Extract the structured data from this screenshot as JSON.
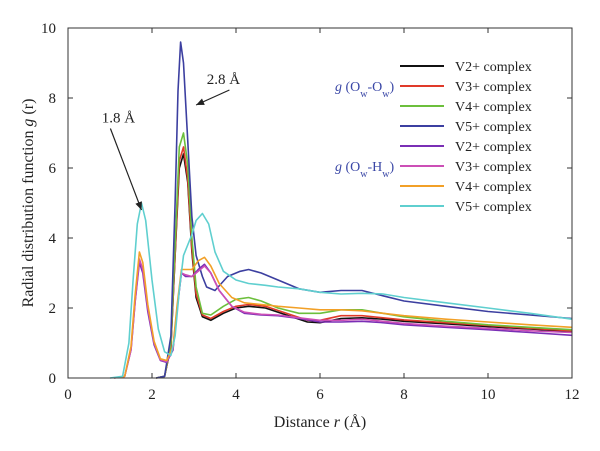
{
  "chart_data": {
    "type": "line",
    "xlabel_prefix": "Distance ",
    "xlabel_var": "r",
    "xlabel_suffix": " (Å)",
    "ylabel_prefix": "Radial distribution function ",
    "ylabel_var": "g",
    "ylabel_suffix": " (r)",
    "xlim": [
      0,
      12
    ],
    "ylim": [
      0,
      10
    ],
    "xticks": [
      0,
      2,
      4,
      6,
      8,
      10,
      12
    ],
    "yticks": [
      0,
      2,
      4,
      6,
      8,
      10
    ],
    "grid": false,
    "legend_position": "top-right",
    "group_labels": [
      {
        "g": "g",
        "open": " (O",
        "s1": "w",
        "dash": "-O",
        "s2": "w",
        "close": ")"
      },
      {
        "g": "g",
        "open": " (O",
        "s1": "w",
        "dash": "-H",
        "s2": "w",
        "close": ")"
      }
    ],
    "annotations": [
      {
        "text": "1.8 Å",
        "arrow_to": [
          1.75,
          4.8
        ],
        "text_at": [
          1.2,
          7.3
        ]
      },
      {
        "text": "2.8 Å",
        "arrow_to": [
          3.05,
          7.8
        ],
        "text_at": [
          3.7,
          8.4
        ]
      }
    ],
    "series": [
      {
        "name": "V2+ complex",
        "color": "#111111",
        "x": [
          2.1,
          2.3,
          2.45,
          2.55,
          2.65,
          2.75,
          2.85,
          2.95,
          3.05,
          3.2,
          3.4,
          3.7,
          4.0,
          4.3,
          4.7,
          5.2,
          5.7,
          6.0,
          6.5,
          7.0,
          7.5,
          8.0,
          9.0,
          10.0,
          11.0,
          12.0
        ],
        "y": [
          0,
          0.05,
          0.9,
          3.5,
          6.0,
          6.4,
          5.6,
          3.6,
          2.3,
          1.75,
          1.65,
          1.85,
          2.0,
          2.05,
          2.0,
          1.8,
          1.6,
          1.58,
          1.7,
          1.72,
          1.68,
          1.62,
          1.55,
          1.47,
          1.4,
          1.32
        ]
      },
      {
        "name": "V3+ complex",
        "color": "#e03a2a",
        "x": [
          2.1,
          2.3,
          2.45,
          2.55,
          2.65,
          2.75,
          2.85,
          2.95,
          3.05,
          3.2,
          3.4,
          3.7,
          4.0,
          4.3,
          4.7,
          5.2,
          5.7,
          6.0,
          6.5,
          7.0,
          7.5,
          8.0,
          9.0,
          10.0,
          11.0,
          12.0
        ],
        "y": [
          0,
          0.05,
          0.9,
          3.5,
          6.2,
          6.6,
          5.7,
          3.7,
          2.4,
          1.8,
          1.7,
          1.9,
          2.05,
          2.1,
          2.05,
          1.85,
          1.65,
          1.65,
          1.78,
          1.78,
          1.72,
          1.66,
          1.58,
          1.5,
          1.42,
          1.35
        ]
      },
      {
        "name": "V4+ complex",
        "color": "#6cbf3c",
        "x": [
          2.1,
          2.3,
          2.45,
          2.55,
          2.65,
          2.75,
          2.85,
          2.95,
          3.05,
          3.2,
          3.4,
          3.7,
          4.0,
          4.3,
          4.6,
          5.0,
          5.5,
          6.0,
          6.5,
          7.0,
          7.5,
          8.0,
          9.0,
          10.0,
          11.0,
          12.0
        ],
        "y": [
          0,
          0.05,
          1.0,
          3.8,
          6.6,
          7.0,
          6.1,
          4.0,
          2.6,
          1.85,
          1.8,
          2.05,
          2.25,
          2.3,
          2.2,
          2.0,
          1.85,
          1.85,
          1.95,
          1.95,
          1.85,
          1.75,
          1.62,
          1.52,
          1.45,
          1.38
        ]
      },
      {
        "name": "V5+ complex",
        "color": "#3c3fa0",
        "x": [
          2.1,
          2.3,
          2.45,
          2.55,
          2.62,
          2.68,
          2.75,
          2.85,
          2.95,
          3.05,
          3.2,
          3.3,
          3.5,
          3.8,
          4.1,
          4.3,
          4.6,
          5.0,
          5.5,
          6.0,
          6.5,
          7.0,
          7.5,
          8.0,
          9.0,
          10.0,
          11.0,
          12.0
        ],
        "y": [
          0,
          0.05,
          1.2,
          5.0,
          8.2,
          9.6,
          9.0,
          6.8,
          4.6,
          3.5,
          2.9,
          2.6,
          2.5,
          2.9,
          3.05,
          3.1,
          3.0,
          2.8,
          2.55,
          2.45,
          2.5,
          2.5,
          2.35,
          2.2,
          2.05,
          1.9,
          1.8,
          1.7
        ]
      },
      {
        "name": "V2+ complex",
        "color": "#7a2fb5",
        "x": [
          1.1,
          1.35,
          1.5,
          1.6,
          1.7,
          1.78,
          1.9,
          2.05,
          2.2,
          2.35,
          2.5,
          2.6,
          2.7,
          2.8,
          2.95,
          3.1,
          3.25,
          3.4,
          3.6,
          3.9,
          4.2,
          4.6,
          5.0,
          5.5,
          6.0,
          6.5,
          7.0,
          7.5,
          8.0,
          9.0,
          10.0,
          11.0,
          12.0
        ],
        "y": [
          0,
          0.05,
          0.8,
          2.2,
          3.3,
          3.0,
          1.9,
          0.95,
          0.5,
          0.45,
          0.8,
          2.0,
          3.0,
          2.9,
          2.9,
          3.1,
          3.25,
          3.0,
          2.5,
          2.05,
          1.85,
          1.8,
          1.78,
          1.7,
          1.6,
          1.6,
          1.62,
          1.58,
          1.52,
          1.45,
          1.38,
          1.3,
          1.22
        ]
      },
      {
        "name": "V3+ complex",
        "color": "#cc4fb6",
        "x": [
          1.1,
          1.35,
          1.5,
          1.6,
          1.7,
          1.78,
          1.9,
          2.05,
          2.2,
          2.35,
          2.5,
          2.6,
          2.7,
          2.8,
          2.95,
          3.1,
          3.25,
          3.4,
          3.6,
          3.9,
          4.2,
          4.6,
          5.0,
          5.5,
          6.0,
          6.5,
          7.0,
          7.5,
          8.0,
          9.0,
          10.0,
          11.0,
          12.0
        ],
        "y": [
          0,
          0.05,
          0.8,
          2.2,
          3.4,
          3.1,
          2.0,
          1.0,
          0.52,
          0.47,
          0.85,
          2.0,
          3.0,
          2.95,
          2.9,
          3.05,
          3.2,
          3.0,
          2.5,
          2.05,
          1.88,
          1.82,
          1.8,
          1.72,
          1.65,
          1.65,
          1.68,
          1.62,
          1.56,
          1.48,
          1.42,
          1.35,
          1.3
        ]
      },
      {
        "name": "V4+ complex",
        "color": "#f2a027",
        "x": [
          1.1,
          1.35,
          1.5,
          1.6,
          1.7,
          1.78,
          1.9,
          2.05,
          2.2,
          2.35,
          2.5,
          2.6,
          2.7,
          2.8,
          2.95,
          3.1,
          3.25,
          3.4,
          3.6,
          3.9,
          4.2,
          4.6,
          5.0,
          5.5,
          6.0,
          6.5,
          7.0,
          7.5,
          8.0,
          9.0,
          10.0,
          11.0,
          12.0
        ],
        "y": [
          0,
          0.05,
          0.9,
          2.4,
          3.6,
          3.3,
          2.1,
          1.05,
          0.55,
          0.5,
          0.9,
          2.1,
          3.1,
          3.1,
          3.1,
          3.35,
          3.45,
          3.2,
          2.7,
          2.3,
          2.15,
          2.1,
          2.05,
          2.0,
          1.95,
          1.95,
          1.92,
          1.85,
          1.78,
          1.68,
          1.6,
          1.52,
          1.45
        ]
      },
      {
        "name": "V5+ complex",
        "color": "#5fcfcf",
        "x": [
          1.0,
          1.3,
          1.45,
          1.55,
          1.65,
          1.75,
          1.85,
          2.0,
          2.15,
          2.3,
          2.45,
          2.55,
          2.65,
          2.75,
          2.85,
          2.95,
          3.05,
          3.2,
          3.35,
          3.5,
          3.7,
          4.0,
          4.3,
          4.7,
          5.0,
          5.5,
          6.0,
          6.5,
          7.0,
          7.5,
          8.0,
          9.0,
          10.0,
          11.0,
          12.0
        ],
        "y": [
          0,
          0.05,
          1.0,
          2.8,
          4.4,
          5.0,
          4.5,
          2.8,
          1.4,
          0.75,
          0.65,
          1.2,
          2.5,
          3.5,
          3.8,
          4.1,
          4.5,
          4.7,
          4.4,
          3.6,
          3.05,
          2.8,
          2.7,
          2.65,
          2.6,
          2.55,
          2.45,
          2.4,
          2.42,
          2.4,
          2.3,
          2.15,
          2.0,
          1.85,
          1.68
        ]
      }
    ]
  }
}
